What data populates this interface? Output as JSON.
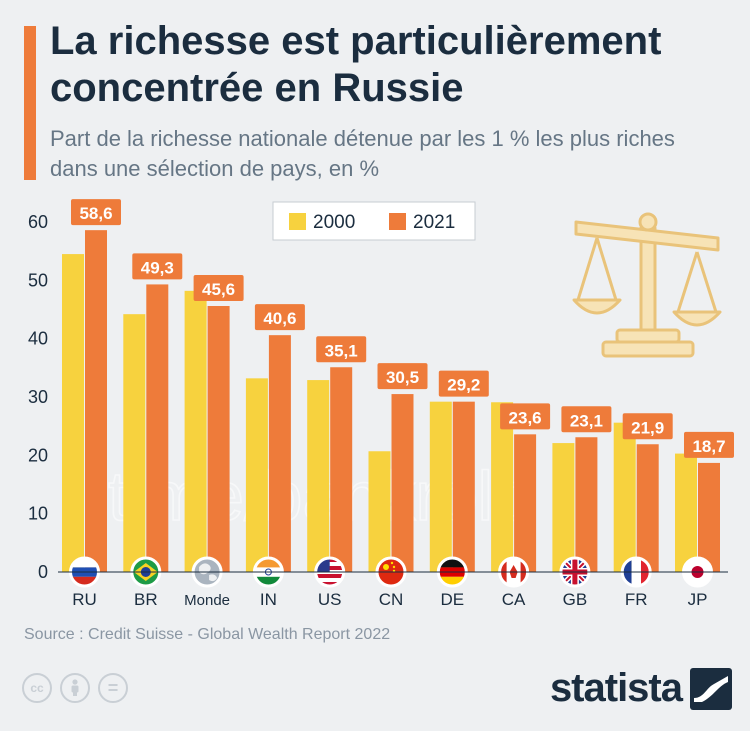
{
  "header": {
    "title": "La richesse est particulièrement concentrée en Russie",
    "subtitle": "Part de la richesse nationale détenue par les 1 % les plus riches dans une sélection de pays, en %"
  },
  "chart_data": {
    "type": "bar",
    "categories": [
      "RU",
      "BR",
      "Monde",
      "IN",
      "US",
      "CN",
      "DE",
      "CA",
      "GB",
      "FR",
      "JP"
    ],
    "series": [
      {
        "name": "2000",
        "color": "#f7d23e",
        "values": [
          54.5,
          44.2,
          48.2,
          33.2,
          32.9,
          20.7,
          29.2,
          29.1,
          22.1,
          25.6,
          20.3
        ]
      },
      {
        "name": "2021",
        "color": "#ee7b3a",
        "values": [
          58.6,
          49.3,
          45.6,
          40.6,
          35.1,
          30.5,
          29.2,
          23.6,
          23.1,
          21.9,
          18.7
        ]
      }
    ],
    "data_labels": [
      "58,6",
      "49,3",
      "45,6",
      "40,6",
      "35,1",
      "30,5",
      "29,2",
      "23,6",
      "23,1",
      "21,9",
      "18,7"
    ],
    "yticks": [
      0,
      10,
      20,
      30,
      40,
      50,
      60
    ],
    "ylim": [
      0,
      60
    ],
    "grid": false,
    "legend_position": "top-center",
    "flags": [
      "russia-flag",
      "brazil-flag",
      "globe",
      "india-flag",
      "usa-flag",
      "china-flag",
      "germany-flag",
      "canada-flag",
      "uk-flag",
      "france-flag",
      "japan-flag"
    ]
  },
  "watermark": "t.me/bankrolo",
  "footer": {
    "source": "Source : Credit Suisse - Global Wealth Report 2022",
    "license_icons": [
      "cc-icon",
      "by-icon",
      "nd-icon"
    ],
    "cc_glyphs": [
      "cc",
      "",
      "="
    ],
    "brand": "statista"
  }
}
